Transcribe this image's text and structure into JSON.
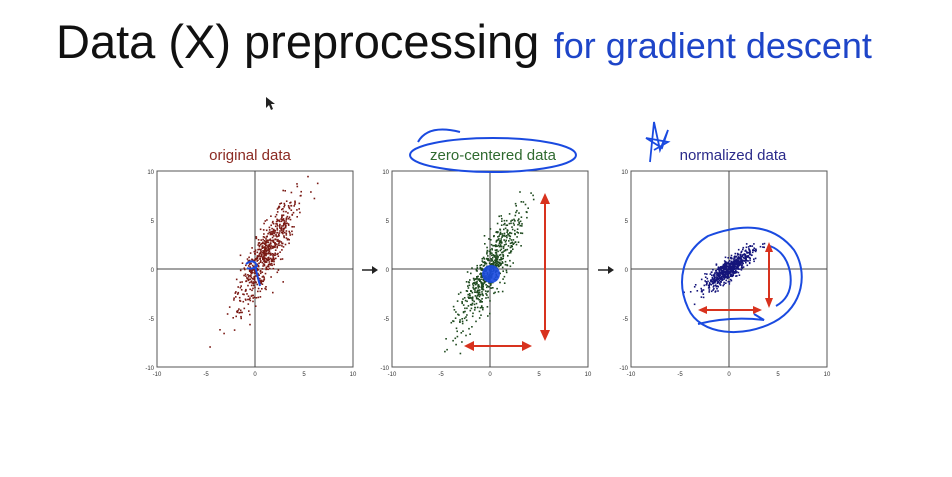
{
  "title": {
    "main": "Data (X) preprocessing",
    "sub": "for gradient descent"
  },
  "colors": {
    "original": "#7a1a14",
    "zero_centered": "#1f4a1f",
    "normalized": "#14147a",
    "annotation_blue": "#1a4ae0",
    "annotation_red": "#d8321e"
  },
  "chart_data": [
    {
      "type": "scatter",
      "title": "original data",
      "xlim": [
        -10,
        10
      ],
      "ylim": [
        -10,
        10
      ],
      "xticks": [
        "-10",
        "-5",
        "0",
        "5",
        "10"
      ],
      "yticks": [
        "10",
        "5",
        "0",
        "-5",
        "-10"
      ],
      "grid": false,
      "cloud": {
        "mean": [
          1.2,
          1.6
        ],
        "minor_std": 0.7,
        "major_std": 3.2,
        "angle_deg": 63,
        "n": 650
      }
    },
    {
      "type": "scatter",
      "title": "zero-centered data",
      "xlim": [
        -10,
        10
      ],
      "ylim": [
        -10,
        10
      ],
      "xticks": [
        "-10",
        "-5",
        "0",
        "5",
        "10"
      ],
      "yticks": [
        "10",
        "5",
        "0",
        "-5",
        "-10"
      ],
      "grid": false,
      "cloud": {
        "mean": [
          0,
          0
        ],
        "minor_std": 0.7,
        "major_std": 3.2,
        "angle_deg": 63,
        "n": 650
      }
    },
    {
      "type": "scatter",
      "title": "normalized data",
      "xlim": [
        -10,
        10
      ],
      "ylim": [
        -10,
        10
      ],
      "xticks": [
        "-10",
        "-5",
        "0",
        "5",
        "10"
      ],
      "yticks": [
        "10",
        "5",
        "0",
        "-5",
        "-10"
      ],
      "grid": false,
      "cloud": {
        "mean": [
          0,
          0
        ],
        "minor_std": 0.45,
        "major_std": 1.5,
        "angle_deg": 38,
        "n": 650
      }
    }
  ]
}
